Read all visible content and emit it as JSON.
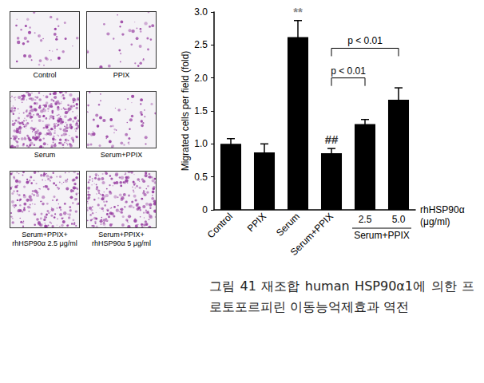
{
  "chart_data": {
    "type": "bar",
    "categories": [
      "Control",
      "PPIX",
      "Serum",
      "Serum+PPIX",
      "2.5",
      "5.0"
    ],
    "values": [
      1.0,
      0.87,
      2.62,
      0.86,
      1.3,
      1.67
    ],
    "errors": [
      0.08,
      0.13,
      0.25,
      0.07,
      0.07,
      0.18
    ],
    "color": "#000000",
    "y_label": "Migrated cells per field (fold)",
    "x_label": "rhHSP90α\n(μg/ml)",
    "ylim": [
      0,
      3
    ],
    "yticks": [
      0,
      0.5,
      {
        "value": 1,
        "label": "1.0"
      },
      1.5,
      {
        "value": 2,
        "label": "2.0"
      },
      2.5,
      {
        "value": 3,
        "label": "3.0"
      }
    ],
    "grid": false,
    "annotations": [
      {
        "text": "**",
        "category": "Serum"
      },
      {
        "text": "##",
        "category": "Serum+PPIX"
      }
    ],
    "brackets": [
      {
        "text": "p < 0.01",
        "from": "Serum+PPIX",
        "to": "2.5",
        "y": 2.0
      },
      {
        "text": "p < 0.01",
        "from": "Serum+PPIX",
        "to": "5.0",
        "y": 2.45
      }
    ],
    "group_label": {
      "text": "Serum+PPIX",
      "categories": [
        "2.5",
        "5.0"
      ]
    }
  },
  "panels": [
    "Control",
    "PPIX",
    "Serum",
    "Serum+PPIX",
    "Serum+PPIX+\nrhHSP90α 2.5 μg/ml",
    "Serum+PPIX+\nrhHSP90α 5 μg/ml"
  ],
  "caption": "그림 41 재조합 human HSP90α1에 의한 프로토포르피린 이동능억제효과 역전"
}
